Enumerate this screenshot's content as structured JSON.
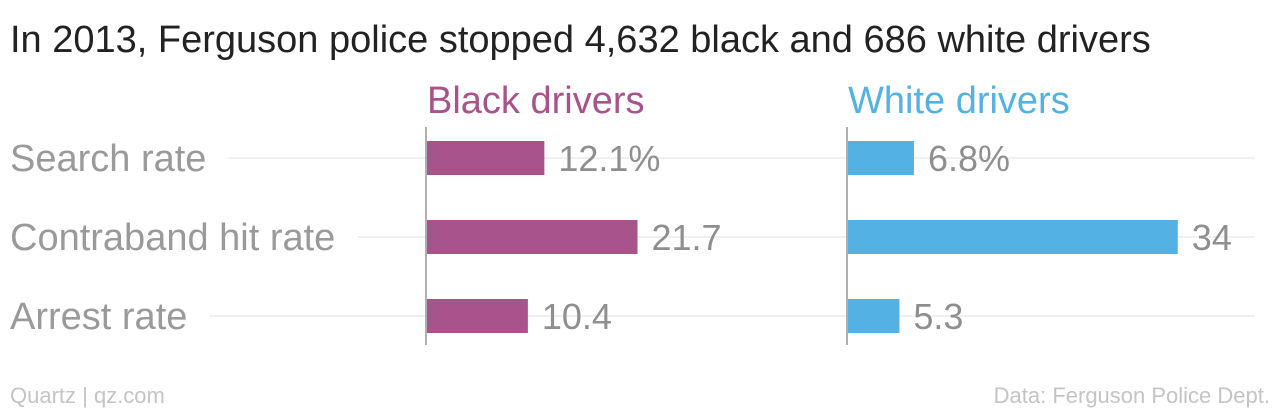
{
  "chart_data": {
    "type": "bar",
    "orientation": "horizontal",
    "title": "In 2013, Ferguson police stopped 4,632 black and 686 white drivers",
    "categories": [
      "Search rate",
      "Contraband hit rate",
      "Arrest rate"
    ],
    "series": [
      {
        "name": "Black drivers",
        "color": "#a8538a",
        "values": [
          12.1,
          21.7,
          10.4
        ],
        "value_labels": [
          "12.1%",
          "21.7",
          "10.4"
        ]
      },
      {
        "name": "White drivers",
        "color": "#53b2e3",
        "values": [
          6.8,
          34,
          5.3
        ],
        "value_labels": [
          "6.8%",
          "34",
          "5.3"
        ]
      }
    ],
    "xlim": [
      0,
      34
    ],
    "grid": true,
    "legend": "panel headers"
  },
  "footer": {
    "credit": "Quartz | qz.com",
    "source": "Data: Ferguson Police Dept."
  }
}
